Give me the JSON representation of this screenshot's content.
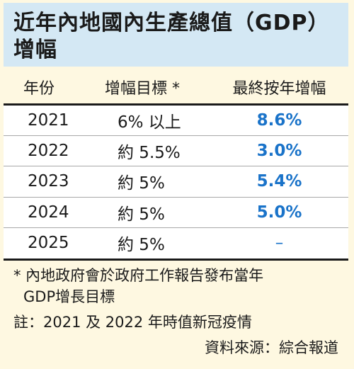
{
  "title": {
    "line1": "近年內地國內生產總值（GDP）",
    "line2": "增幅"
  },
  "table": {
    "headers": {
      "year": "年份",
      "target": "增幅目標 *",
      "final": "最終按年增幅"
    },
    "rows": [
      {
        "year": "2021",
        "target": "6% 以上",
        "final": "8.6%"
      },
      {
        "year": "2022",
        "target": "約 5.5%",
        "final": "3.0%"
      },
      {
        "year": "2023",
        "target": "約 5%",
        "final": "5.4%"
      },
      {
        "year": "2024",
        "target": "約 5%",
        "final": "5.0%"
      },
      {
        "year": "2025",
        "target": "約 5%",
        "final": "–"
      }
    ]
  },
  "notes": {
    "note1": "* 內地政府會於政府工作報告發布當年",
    "note1_cont": "GDP增長目標",
    "note2": "註：2021 及 2022 年時值新冠疫情",
    "source": "資料來源：綜合報道"
  },
  "colors": {
    "background": "#fef8e1",
    "title_bg": "#d4e8f4",
    "accent": "#1a73c9"
  }
}
